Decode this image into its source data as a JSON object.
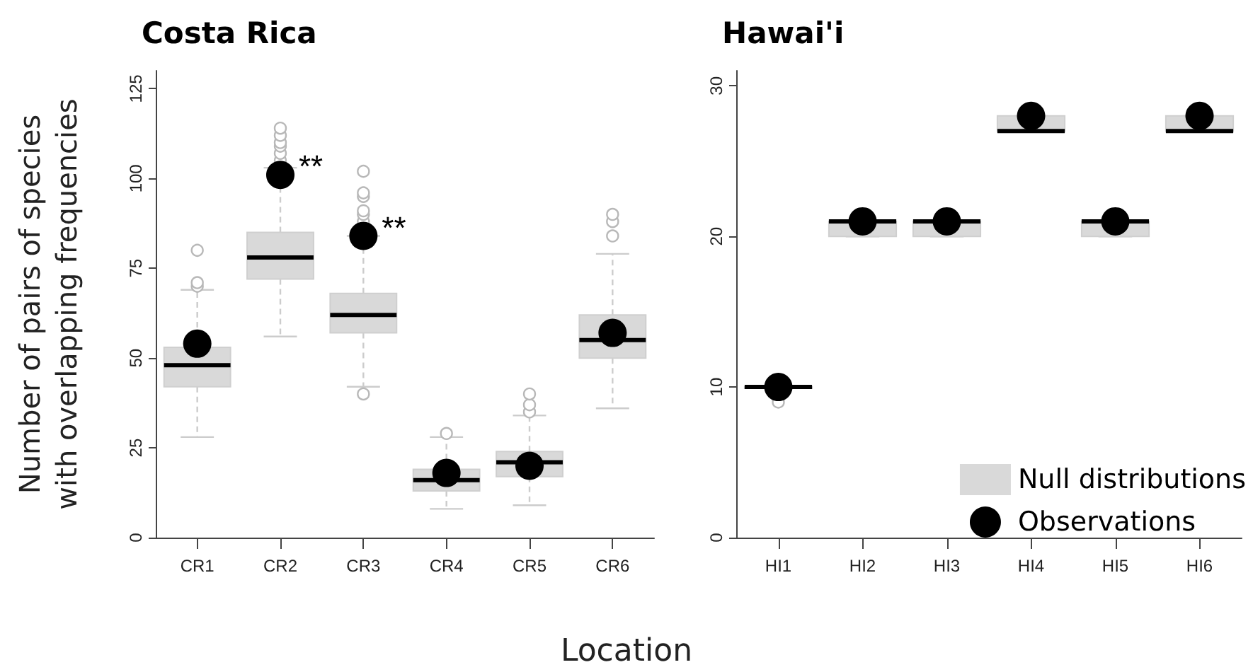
{
  "chart_data": [
    {
      "type": "box",
      "title": "Costa Rica",
      "xlabel": "Location",
      "ylabel": "Number of pairs of species\nwith overlapping frequencies",
      "categories": [
        "CR1",
        "CR2",
        "CR3",
        "CR4",
        "CR5",
        "CR6"
      ],
      "ylim": [
        0,
        130
      ],
      "yticks": [
        0,
        25,
        50,
        75,
        100,
        125
      ],
      "grid": false,
      "legend": false,
      "annotations": [
        {
          "text": "**",
          "x": "CR2",
          "y": 101
        },
        {
          "text": "**",
          "x": "CR3",
          "y": 84
        }
      ],
      "series": [
        {
          "color": "#d9d9d9",
          "boxes": [
            {
              "low": 28,
              "q1": 42,
              "median": 48,
              "q3": 53,
              "high": 69,
              "outliers": [
                70,
                71,
                80
              ]
            },
            {
              "low": 56,
              "q1": 72,
              "median": 78,
              "q3": 85,
              "high": 103,
              "outliers": [
                105,
                107,
                109,
                110,
                112,
                114
              ]
            },
            {
              "low": 42,
              "q1": 57,
              "median": 62,
              "q3": 68,
              "high": 84,
              "outliers": [
                40,
                88,
                90,
                91,
                95,
                96,
                102
              ]
            },
            {
              "low": 8,
              "q1": 13,
              "median": 16,
              "q3": 19,
              "high": 28,
              "outliers": [
                29
              ]
            },
            {
              "low": 9,
              "q1": 17,
              "median": 21,
              "q3": 24,
              "high": 34,
              "outliers": [
                35,
                37,
                40
              ]
            },
            {
              "low": 36,
              "q1": 50,
              "median": 55,
              "q3": 62,
              "high": 79,
              "outliers": [
                84,
                88,
                90
              ]
            }
          ]
        },
        {
          "type": "scatter",
          "color": "#000000",
          "marker": "circle",
          "values": [
            54,
            101,
            84,
            18,
            20,
            57
          ]
        }
      ]
    },
    {
      "type": "box",
      "title": "Hawai'i",
      "categories": [
        "HI1",
        "HI2",
        "HI3",
        "HI4",
        "HI5",
        "HI6"
      ],
      "ylim": [
        0,
        31
      ],
      "yticks": [
        0,
        10,
        20,
        30
      ],
      "grid": false,
      "legend": "bottom right",
      "series": [
        {
          "name": "Null distributions",
          "color": "#d9d9d9",
          "boxes": [
            {
              "low": 10,
              "q1": 10,
              "median": 10,
              "q3": 10,
              "high": 10,
              "outliers": [
                9
              ]
            },
            {
              "low": 20,
              "q1": 20,
              "median": 21,
              "q3": 21,
              "high": 21
            },
            {
              "low": 20,
              "q1": 20,
              "median": 21,
              "q3": 21,
              "high": 21
            },
            {
              "low": 27,
              "q1": 27,
              "median": 27,
              "q3": 28,
              "high": 28
            },
            {
              "low": 20,
              "q1": 20,
              "median": 21,
              "q3": 21,
              "high": 21
            },
            {
              "low": 27,
              "q1": 27,
              "median": 27,
              "q3": 28,
              "high": 28
            }
          ]
        },
        {
          "name": "Observations",
          "type": "scatter",
          "color": "#000000",
          "marker": "circle",
          "values": [
            10,
            21,
            21,
            28,
            21,
            28
          ]
        }
      ]
    }
  ]
}
